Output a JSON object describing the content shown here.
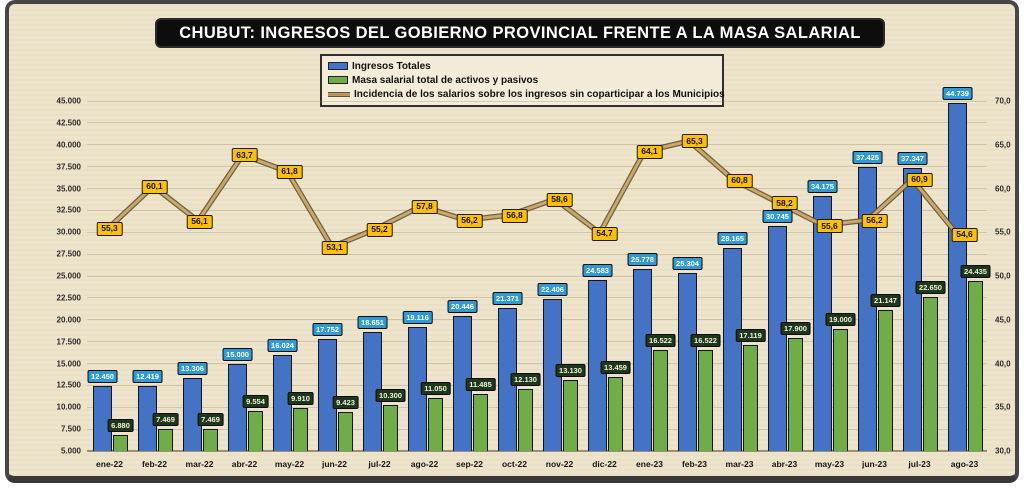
{
  "title": "CHUBUT: INGRESOS DEL GOBIERNO PROVINCIAL FRENTE A LA MASA SALARIAL",
  "legend": {
    "items": [
      {
        "label": "Ingresos Totales",
        "type": "bar",
        "color": "#4472C4"
      },
      {
        "label": "Masa salarial total de activos y pasivos",
        "type": "bar",
        "color": "#70AD47"
      },
      {
        "label": "Incidencia de los salarios sobre los ingresos sin coparticipar a los Municipios",
        "type": "line",
        "color": "#BA965C"
      }
    ]
  },
  "colors": {
    "background": "#EDE4CB",
    "ingresos_bar": "#4472C4",
    "masa_bar": "#70AD47",
    "line": "#C9A86B",
    "line_outline": "#63512F",
    "ingresos_label_bg": "#2E9BD8",
    "ingresos_label_text": "#FFFFFF",
    "masa_label_bg": "#20361B",
    "masa_label_text": "#EAF4DB",
    "line_label_bg": "#FFC000",
    "line_label_text": "#0E0E0E"
  },
  "chart_data": {
    "type": "bar",
    "subtype": "grouped bars with secondary-axis line",
    "title": "CHUBUT: INGRESOS DEL GOBIERNO PROVINCIAL FRENTE A LA MASA SALARIAL",
    "categories": [
      "ene-22",
      "feb-22",
      "mar-22",
      "abr-22",
      "may-22",
      "jun-22",
      "jul-22",
      "ago-22",
      "sep-22",
      "oct-22",
      "nov-22",
      "dic-22",
      "ene-23",
      "feb-23",
      "mar-23",
      "abr-23",
      "may-23",
      "jun-23",
      "jul-23",
      "ago-23"
    ],
    "series": [
      {
        "name": "Ingresos Totales",
        "type": "bar",
        "axis": "left",
        "values": [
          12450,
          12419,
          13306,
          15000,
          16024,
          17752,
          18651,
          19116,
          20446,
          21371,
          22406,
          24583,
          25778,
          25304,
          28165,
          30745,
          34175,
          37425,
          37347,
          44739
        ],
        "labels": [
          "12.450",
          "12.419",
          "13.306",
          "15.000",
          "16.024",
          "17.752",
          "18.651",
          "19.116",
          "20.446",
          "21.371",
          "22.406",
          "24.583",
          "25.778",
          "25.304",
          "28.165",
          "30.745",
          "34.175",
          "37.425",
          "37.347",
          "44.739"
        ]
      },
      {
        "name": "Masa salarial total de activos y pasivos",
        "type": "bar",
        "axis": "left",
        "values": [
          6880,
          7469,
          7469,
          9554,
          9910,
          9423,
          10300,
          11050,
          11485,
          12130,
          13130,
          13459,
          16522,
          16522,
          17119,
          17900,
          19000,
          21147,
          22650,
          24435
        ],
        "labels": [
          "6.880",
          "7.469",
          "7.469",
          "9.554",
          "9.910",
          "9.423",
          "10.300",
          "11.050",
          "11.485",
          "12.130",
          "13.130",
          "13.459",
          "16.522",
          "16.522",
          "17.119",
          "17.900",
          "19.000",
          "21.147",
          "22.650",
          "24.435"
        ]
      },
      {
        "name": "Incidencia de los salarios sobre los ingresos sin coparticipar a los Municipios",
        "type": "line",
        "axis": "right",
        "values": [
          55.3,
          60.1,
          56.1,
          63.7,
          61.8,
          53.1,
          55.2,
          57.8,
          56.2,
          56.8,
          58.6,
          54.7,
          64.1,
          65.3,
          60.8,
          58.2,
          55.6,
          56.2,
          60.9,
          54.6
        ],
        "labels": [
          "55,3",
          "60,1",
          "56,1",
          "63,7",
          "61,8",
          "53,1",
          "55,2",
          "57,8",
          "56,2",
          "56,8",
          "58,6",
          "54,7",
          "64,1",
          "65,3",
          "60,8",
          "58,2",
          "55,6",
          "56,2",
          "60,9",
          "54,6"
        ]
      }
    ],
    "left_axis": {
      "min": 5000,
      "max": 45000,
      "step": 2500,
      "tick_labels": [
        "5.000",
        "7.500",
        "10.000",
        "12.500",
        "15.000",
        "17.500",
        "20.000",
        "22.500",
        "25.000",
        "27.500",
        "30.000",
        "32.500",
        "35.000",
        "37.500",
        "40.000",
        "42.500",
        "45.000"
      ]
    },
    "right_axis": {
      "min": 30,
      "max": 70,
      "step": 5,
      "tick_labels": [
        "30,0",
        "35,0",
        "40,0",
        "45,0",
        "50,0",
        "55,0",
        "60,0",
        "65,0",
        "70,0"
      ]
    },
    "grid": true,
    "legend_position": "top-center"
  }
}
